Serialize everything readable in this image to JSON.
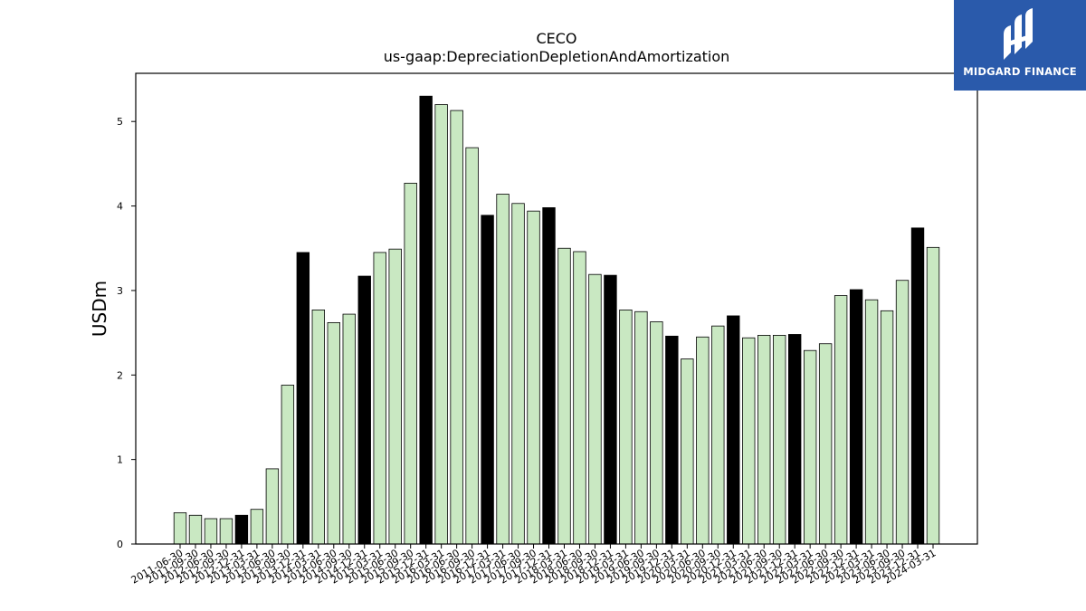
{
  "brand": {
    "name": "MIDGARD FINANCE",
    "bg": "#2a5aab"
  },
  "chart_data": {
    "type": "bar",
    "title": "CECO",
    "subtitle": "us-gaap:DepreciationDepletionAndAmortization",
    "xlabel": "",
    "ylabel": "USDm",
    "ylim": [
      0,
      5.57
    ],
    "yticks": [
      0,
      1,
      2,
      3,
      4,
      5
    ],
    "grid": false,
    "colors": {
      "quarter": "#c9e8c2",
      "year_end": "#000000",
      "edge": "#000000"
    },
    "categories": [
      "2011-06-30",
      "2011-09-30",
      "2012-06-30",
      "2012-09-30",
      "2012-12-31",
      "2013-03-31",
      "2013-06-30",
      "2013-09-30",
      "2013-12-31",
      "2014-03-31",
      "2014-06-30",
      "2014-09-30",
      "2014-12-31",
      "2015-03-31",
      "2015-06-30",
      "2015-09-30",
      "2015-12-31",
      "2016-03-31",
      "2016-06-30",
      "2016-09-30",
      "2016-12-31",
      "2017-03-31",
      "2017-06-30",
      "2017-09-30",
      "2017-12-31",
      "2018-03-31",
      "2018-06-30",
      "2018-09-30",
      "2018-12-31",
      "2019-03-31",
      "2019-06-30",
      "2019-09-30",
      "2019-12-31",
      "2020-03-31",
      "2020-06-30",
      "2020-09-30",
      "2020-12-31",
      "2021-03-31",
      "2021-06-30",
      "2021-09-30",
      "2021-12-31",
      "2022-03-31",
      "2022-06-30",
      "2022-09-30",
      "2022-12-31",
      "2023-03-31",
      "2023-06-30",
      "2023-09-30",
      "2023-12-31",
      "2024-03-31"
    ],
    "series": [
      {
        "values": [
          0.37,
          0.34,
          0.3,
          0.3,
          0.34,
          0.41,
          0.89,
          1.88,
          3.45,
          2.77,
          2.62,
          2.72,
          3.17,
          3.45,
          3.49,
          4.27,
          5.3,
          5.2,
          5.13,
          4.69,
          3.89,
          4.14,
          4.03,
          3.94,
          3.98,
          3.5,
          3.46,
          3.19,
          3.18,
          2.77,
          2.75,
          2.63,
          2.46,
          2.19,
          2.45,
          2.58,
          2.7,
          2.44,
          2.47,
          2.47,
          2.48,
          2.29,
          2.37,
          2.94,
          3.01,
          2.89,
          2.76,
          3.12,
          3.74,
          3.51
        ],
        "year_end": [
          false,
          false,
          false,
          false,
          true,
          false,
          false,
          false,
          true,
          false,
          false,
          false,
          true,
          false,
          false,
          false,
          true,
          false,
          false,
          false,
          true,
          false,
          false,
          false,
          true,
          false,
          false,
          false,
          true,
          false,
          false,
          false,
          true,
          false,
          false,
          false,
          true,
          false,
          false,
          false,
          true,
          false,
          false,
          false,
          true,
          false,
          false,
          false,
          true,
          false
        ]
      }
    ]
  }
}
